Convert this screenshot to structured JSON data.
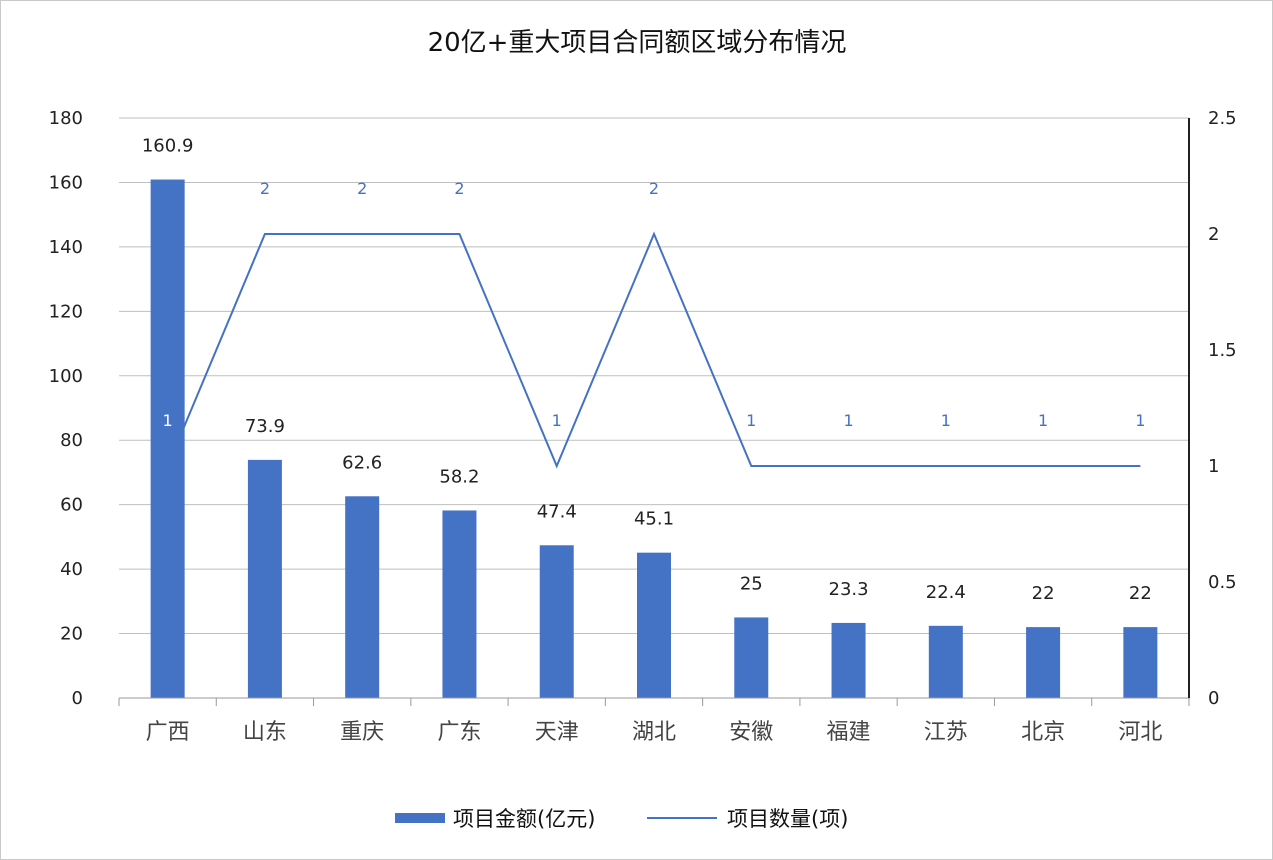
{
  "chart_data": {
    "type": "bar",
    "title": "20亿+重大项目合同额区域分布情况",
    "categories": [
      "广西",
      "山东",
      "重庆",
      "广东",
      "天津",
      "湖北",
      "安徽",
      "福建",
      "江苏",
      "北京",
      "河北"
    ],
    "series": [
      {
        "name": "项目金额(亿元)",
        "type": "bar",
        "axis": "left",
        "values": [
          160.9,
          73.9,
          62.6,
          58.2,
          47.4,
          45.1,
          25,
          23.3,
          22.4,
          22,
          22
        ],
        "labels": [
          "160.9",
          "73.9",
          "62.6",
          "58.2",
          "47.4",
          "45.1",
          "25",
          "23.3",
          "22.4",
          "22",
          "22"
        ]
      },
      {
        "name": "项目数量(项)",
        "type": "line",
        "axis": "right",
        "values": [
          1,
          2,
          2,
          2,
          1,
          2,
          1,
          1,
          1,
          1,
          1
        ],
        "labels": [
          "1",
          "2",
          "2",
          "2",
          "1",
          "2",
          "1",
          "1",
          "1",
          "1",
          "1"
        ]
      }
    ],
    "left_axis": {
      "min": 0,
      "max": 180,
      "ticks": [
        "0",
        "20",
        "40",
        "60",
        "80",
        "100",
        "120",
        "140",
        "160",
        "180"
      ]
    },
    "right_axis": {
      "min": 0,
      "max": 2.5,
      "ticks": [
        "0",
        "0.5",
        "1",
        "1.5",
        "2",
        "2.5"
      ]
    },
    "grid": true,
    "legend_position": "bottom",
    "colors": {
      "bar": "#4472c4",
      "line": "#4472c4",
      "grid": "#bfbfbf"
    }
  }
}
